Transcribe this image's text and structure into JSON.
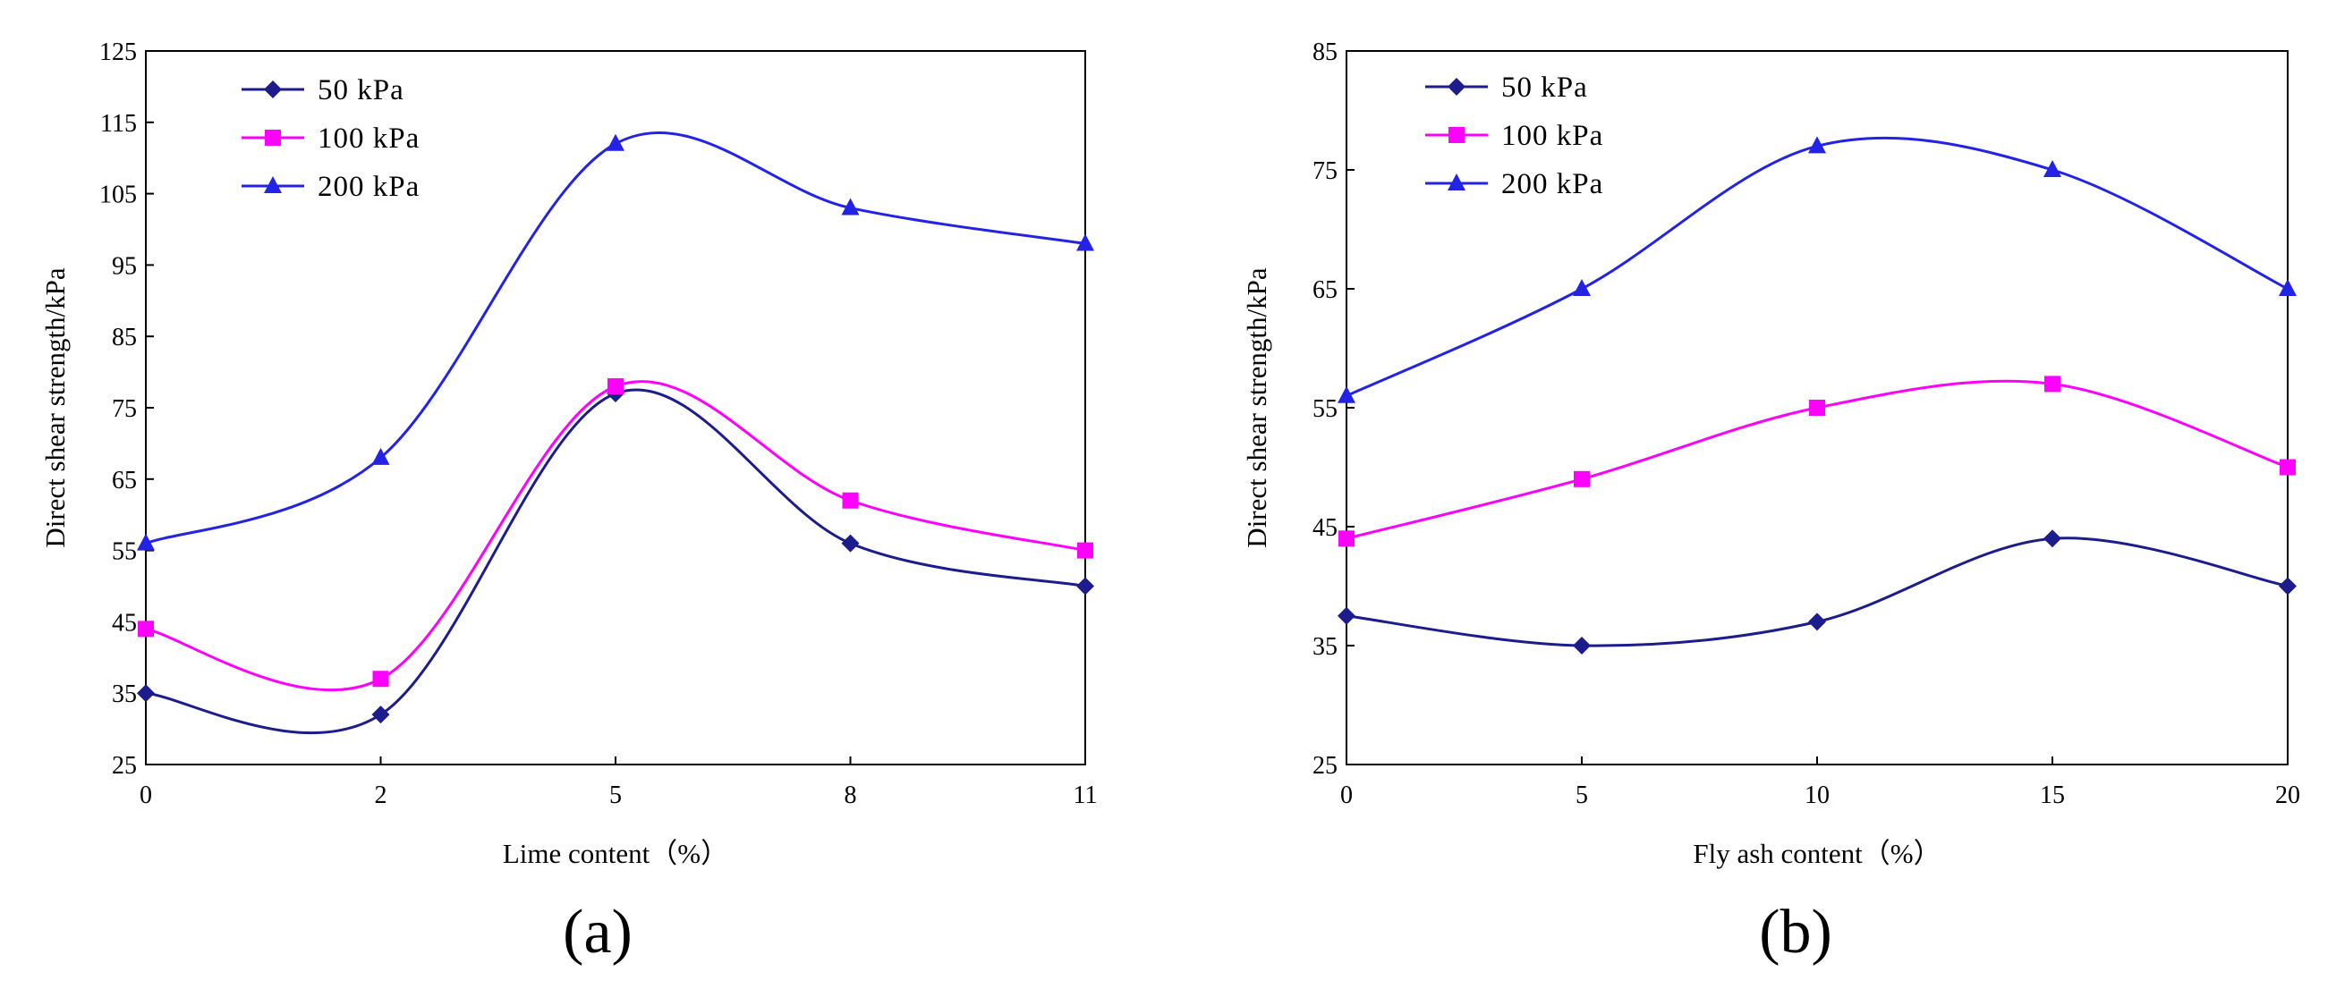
{
  "colors": {
    "series_50": "#1c1c8c",
    "series_100": "#ff00ff",
    "series_200": "#2323e6",
    "axis": "#000000"
  },
  "chart_data": [
    {
      "type": "line",
      "panel_label": "(a)",
      "xlabel": "Lime content（%）",
      "ylabel": "Direct shear strength/kPa",
      "x": [
        0,
        2,
        5,
        8,
        11
      ],
      "x_tick_labels": [
        "0",
        "2",
        "5",
        "8",
        "11"
      ],
      "ylim": [
        25,
        125
      ],
      "y_ticks": [
        25,
        35,
        45,
        55,
        65,
        75,
        85,
        95,
        105,
        115,
        125
      ],
      "legend_position": "top-left",
      "series": [
        {
          "name": "50 kPa",
          "marker": "diamond",
          "color_key": "series_50",
          "values": [
            35,
            32,
            77,
            56,
            50
          ]
        },
        {
          "name": "100 kPa",
          "marker": "square",
          "color_key": "series_100",
          "values": [
            44,
            37,
            78,
            62,
            55
          ]
        },
        {
          "name": "200 kPa",
          "marker": "triangle",
          "color_key": "series_200",
          "values": [
            56,
            68,
            112,
            103,
            98
          ]
        }
      ]
    },
    {
      "type": "line",
      "panel_label": "(b)",
      "xlabel": "Fly ash content（%）",
      "ylabel": "Direct shear strength/kPa",
      "x": [
        0,
        5,
        10,
        15,
        20
      ],
      "x_tick_labels": [
        "0",
        "5",
        "10",
        "15",
        "20"
      ],
      "ylim": [
        25,
        85
      ],
      "y_ticks": [
        25,
        35,
        45,
        55,
        65,
        75,
        85
      ],
      "legend_position": "top-left",
      "series": [
        {
          "name": "50 kPa",
          "marker": "diamond",
          "color_key": "series_50",
          "values": [
            37.5,
            35,
            37,
            44,
            40
          ]
        },
        {
          "name": "100 kPa",
          "marker": "square",
          "color_key": "series_100",
          "values": [
            44,
            49,
            55,
            57,
            50
          ]
        },
        {
          "name": "200 kPa",
          "marker": "triangle",
          "color_key": "series_200",
          "values": [
            56,
            65,
            77,
            75,
            65
          ]
        }
      ]
    }
  ]
}
